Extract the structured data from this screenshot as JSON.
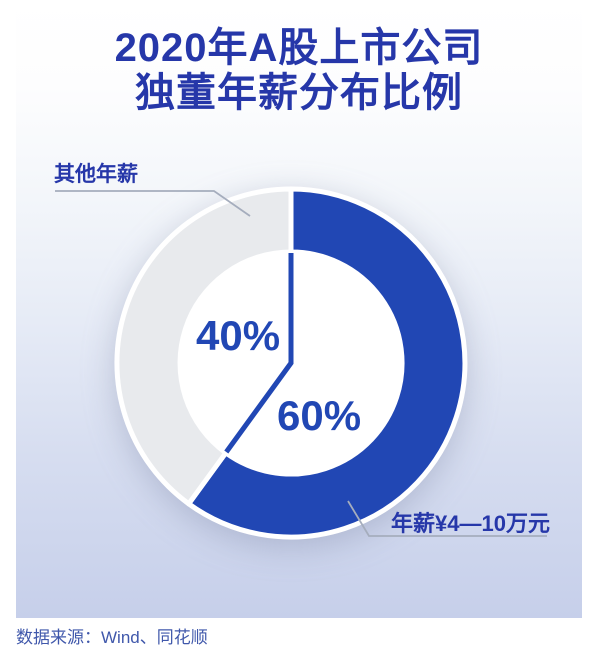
{
  "title": {
    "line1": "2020年A股上市公司",
    "line2": "独董年薪分布比例"
  },
  "chart_data": {
    "type": "pie",
    "variant": "donut",
    "title": "2020年A股上市公司独董年薪分布比例",
    "slices": [
      {
        "label": "年薪¥4—10万元",
        "value": 60,
        "display": "60%",
        "color": "#2147b4"
      },
      {
        "label": "其他年薪",
        "value": 40,
        "display": "40%",
        "color": "#e8eaed"
      }
    ],
    "start_angle_deg": 0,
    "direction": "clockwise",
    "legend_position": "callout-labels",
    "source": "数据来源：Wind、同花顺"
  },
  "source": {
    "text": "数据来源：Wind、同花顺"
  },
  "colors": {
    "accent_blue": "#2147b4",
    "title_blue": "#2637a9",
    "slice_gray": "#e8eaed",
    "background_top": "#ffffff",
    "background_bottom": "#c6cfea",
    "leader_line": "#a5adbd",
    "source_text": "#4058ab"
  }
}
